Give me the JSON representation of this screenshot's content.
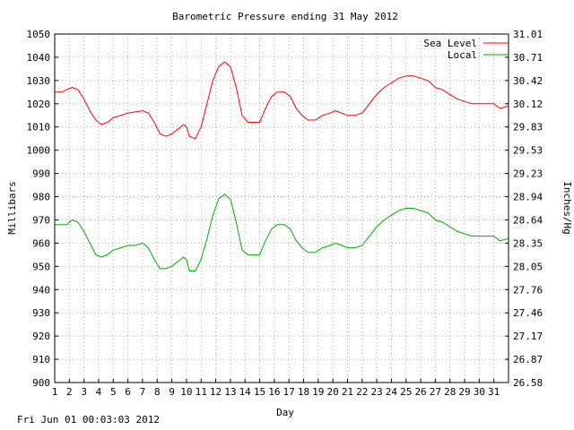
{
  "chart_data": {
    "type": "line",
    "title": "Barometric Pressure ending 31 May 2012",
    "xlabel": "Day",
    "ylabel": "Millibars",
    "ylabel_right": "Inches/Hg",
    "xlim": [
      1,
      32
    ],
    "ylim": [
      900,
      1050
    ],
    "x_ticks": [
      "1",
      "2",
      "3",
      "4",
      "5",
      "6",
      "7",
      "8",
      "9",
      "10",
      "11",
      "12",
      "13",
      "14",
      "15",
      "16",
      "17",
      "18",
      "19",
      "20",
      "21",
      "22",
      "23",
      "24",
      "25",
      "26",
      "27",
      "28",
      "29",
      "30",
      "31"
    ],
    "y_ticks": [
      "900",
      "910",
      "920",
      "930",
      "940",
      "950",
      "960",
      "970",
      "980",
      "990",
      "1000",
      "1010",
      "1020",
      "1030",
      "1040",
      "1050"
    ],
    "y_ticks_right": [
      "26.58",
      "26.87",
      "27.17",
      "27.46",
      "27.76",
      "28.05",
      "28.35",
      "28.64",
      "28.94",
      "29.23",
      "29.53",
      "29.83",
      "30.12",
      "30.42",
      "30.71",
      "31.01"
    ],
    "grid": true,
    "legend_position": "top-right",
    "series": [
      {
        "name": "Sea Level",
        "color": "#ff0000",
        "points": [
          [
            1.0,
            1025
          ],
          [
            1.5,
            1025
          ],
          [
            1.8,
            1026
          ],
          [
            2.2,
            1027
          ],
          [
            2.6,
            1026
          ],
          [
            3.0,
            1022
          ],
          [
            3.4,
            1017
          ],
          [
            3.8,
            1013
          ],
          [
            4.2,
            1011
          ],
          [
            4.6,
            1012
          ],
          [
            5.0,
            1014
          ],
          [
            5.5,
            1015
          ],
          [
            6.0,
            1016
          ],
          [
            6.5,
            1016.5
          ],
          [
            7.0,
            1017
          ],
          [
            7.4,
            1016
          ],
          [
            7.8,
            1012
          ],
          [
            8.2,
            1007
          ],
          [
            8.6,
            1006
          ],
          [
            9.0,
            1007
          ],
          [
            9.4,
            1009
          ],
          [
            9.8,
            1011
          ],
          [
            10.0,
            1010
          ],
          [
            10.2,
            1006
          ],
          [
            10.6,
            1005
          ],
          [
            11.0,
            1010
          ],
          [
            11.4,
            1020
          ],
          [
            11.8,
            1030
          ],
          [
            12.2,
            1036
          ],
          [
            12.6,
            1038
          ],
          [
            13.0,
            1036
          ],
          [
            13.4,
            1027
          ],
          [
            13.8,
            1015
          ],
          [
            14.2,
            1012
          ],
          [
            14.6,
            1012
          ],
          [
            15.0,
            1012
          ],
          [
            15.4,
            1018
          ],
          [
            15.8,
            1023
          ],
          [
            16.2,
            1025
          ],
          [
            16.7,
            1025
          ],
          [
            17.1,
            1023
          ],
          [
            17.5,
            1018
          ],
          [
            17.9,
            1015
          ],
          [
            18.3,
            1013
          ],
          [
            18.8,
            1013
          ],
          [
            19.3,
            1015
          ],
          [
            19.8,
            1016
          ],
          [
            20.2,
            1017
          ],
          [
            20.6,
            1016
          ],
          [
            21.0,
            1015
          ],
          [
            21.5,
            1015
          ],
          [
            22.0,
            1016
          ],
          [
            22.5,
            1020
          ],
          [
            23.0,
            1024
          ],
          [
            23.5,
            1027
          ],
          [
            24.0,
            1029
          ],
          [
            24.5,
            1031
          ],
          [
            25.0,
            1032
          ],
          [
            25.5,
            1032
          ],
          [
            26.0,
            1031
          ],
          [
            26.5,
            1030
          ],
          [
            27.0,
            1027
          ],
          [
            27.5,
            1026
          ],
          [
            28.0,
            1024
          ],
          [
            28.5,
            1022
          ],
          [
            29.0,
            1021
          ],
          [
            29.5,
            1020
          ],
          [
            30.0,
            1020
          ],
          [
            30.5,
            1020
          ],
          [
            31.0,
            1020
          ],
          [
            31.4,
            1018
          ],
          [
            32.0,
            1019
          ]
        ]
      },
      {
        "name": "Local",
        "color": "#00aa00",
        "points": [
          [
            1.0,
            968
          ],
          [
            1.5,
            968
          ],
          [
            1.8,
            968
          ],
          [
            2.2,
            970
          ],
          [
            2.6,
            969
          ],
          [
            3.0,
            965
          ],
          [
            3.4,
            960
          ],
          [
            3.8,
            955
          ],
          [
            4.2,
            954
          ],
          [
            4.6,
            955
          ],
          [
            5.0,
            957
          ],
          [
            5.5,
            958
          ],
          [
            6.0,
            959
          ],
          [
            6.5,
            959
          ],
          [
            7.0,
            960
          ],
          [
            7.4,
            958
          ],
          [
            7.8,
            953
          ],
          [
            8.2,
            949
          ],
          [
            8.6,
            949
          ],
          [
            9.0,
            950
          ],
          [
            9.4,
            952
          ],
          [
            9.8,
            954
          ],
          [
            10.0,
            953
          ],
          [
            10.2,
            948
          ],
          [
            10.6,
            948
          ],
          [
            11.0,
            953
          ],
          [
            11.4,
            962
          ],
          [
            11.8,
            972
          ],
          [
            12.2,
            979
          ],
          [
            12.6,
            981
          ],
          [
            13.0,
            979
          ],
          [
            13.4,
            969
          ],
          [
            13.8,
            957
          ],
          [
            14.2,
            955
          ],
          [
            14.6,
            955
          ],
          [
            15.0,
            955
          ],
          [
            15.4,
            961
          ],
          [
            15.8,
            966
          ],
          [
            16.2,
            968
          ],
          [
            16.7,
            968
          ],
          [
            17.1,
            966
          ],
          [
            17.5,
            961
          ],
          [
            17.9,
            958
          ],
          [
            18.3,
            956
          ],
          [
            18.8,
            956
          ],
          [
            19.3,
            958
          ],
          [
            19.8,
            959
          ],
          [
            20.2,
            960
          ],
          [
            20.6,
            959
          ],
          [
            21.0,
            958
          ],
          [
            21.5,
            958
          ],
          [
            22.0,
            959
          ],
          [
            22.5,
            963
          ],
          [
            23.0,
            967
          ],
          [
            23.5,
            970
          ],
          [
            24.0,
            972
          ],
          [
            24.5,
            974
          ],
          [
            25.0,
            975
          ],
          [
            25.5,
            975
          ],
          [
            26.0,
            974
          ],
          [
            26.5,
            973
          ],
          [
            27.0,
            970
          ],
          [
            27.5,
            969
          ],
          [
            28.0,
            967
          ],
          [
            28.5,
            965
          ],
          [
            29.0,
            964
          ],
          [
            29.5,
            963
          ],
          [
            30.0,
            963
          ],
          [
            30.5,
            963
          ],
          [
            31.0,
            963
          ],
          [
            31.4,
            961
          ],
          [
            32.0,
            962
          ]
        ]
      }
    ]
  },
  "footer": {
    "timestamp": "Fri Jun 01 00:03:03 2012"
  }
}
